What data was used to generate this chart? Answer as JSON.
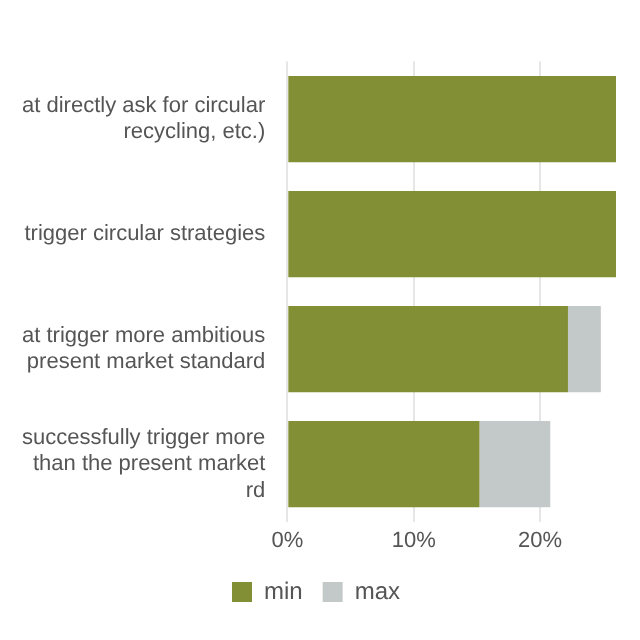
{
  "chart_data": {
    "type": "bar",
    "orientation": "horizontal",
    "stacked": true,
    "categories": [
      "at directly ask for circular\nrecycling, etc.)",
      "trigger circular strategies",
      "at trigger more ambitious\npresent market standard",
      "successfully trigger more\nthan the present market\nrd"
    ],
    "series": [
      {
        "name": "min",
        "color": "#838f35",
        "values": [
          26,
          26,
          22.2,
          15.2
        ]
      },
      {
        "name": "max",
        "color": "#c3c9c8",
        "values": [
          0,
          0,
          2.6,
          5.6
        ]
      }
    ],
    "xlim": [
      0,
      26
    ],
    "xticks": [
      {
        "value": 0,
        "label": "0%"
      },
      {
        "value": 10,
        "label": "10%"
      },
      {
        "value": 20,
        "label": "20%"
      }
    ],
    "grid": "x",
    "legend": "bottom"
  }
}
